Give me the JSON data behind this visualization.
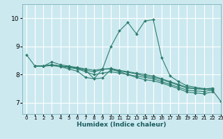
{
  "xlabel": "Humidex (Indice chaleur)",
  "ylabel": "",
  "xlim": [
    -0.5,
    23
  ],
  "ylim": [
    6.6,
    10.5
  ],
  "yticks": [
    7,
    8,
    9,
    10
  ],
  "xticks": [
    0,
    1,
    2,
    3,
    4,
    5,
    6,
    7,
    8,
    9,
    10,
    11,
    12,
    13,
    14,
    15,
    16,
    17,
    18,
    19,
    20,
    21,
    22,
    23
  ],
  "bg_color": "#cce9f0",
  "line_color": "#2e7d6e",
  "grid_color": "#ffffff",
  "lines": [
    {
      "x": [
        0,
        1,
        2,
        3,
        4,
        5,
        6,
        7,
        8,
        9,
        10,
        11,
        12,
        13,
        14,
        15,
        16,
        17,
        18,
        19,
        20,
        21,
        22,
        23
      ],
      "y": [
        8.7,
        8.3,
        8.3,
        8.45,
        8.35,
        8.3,
        8.25,
        8.15,
        7.85,
        8.2,
        9.0,
        9.55,
        9.85,
        9.45,
        9.9,
        9.95,
        8.6,
        7.95,
        7.75,
        7.6,
        7.55,
        7.5,
        7.45,
        7.05
      ]
    },
    {
      "x": [
        1,
        2,
        3,
        4,
        5,
        6,
        7,
        8,
        9,
        10,
        11,
        12,
        13,
        14,
        15,
        16,
        17,
        18,
        19,
        20,
        21,
        22
      ],
      "y": [
        8.3,
        8.3,
        8.35,
        8.3,
        8.28,
        8.25,
        8.2,
        8.15,
        8.2,
        8.2,
        8.12,
        8.08,
        8.02,
        7.95,
        7.9,
        7.82,
        7.72,
        7.62,
        7.52,
        7.5,
        7.48,
        7.5
      ]
    },
    {
      "x": [
        1,
        2,
        3,
        4,
        5,
        6,
        7,
        8,
        9,
        10,
        11,
        12,
        13,
        14,
        15,
        16,
        17,
        18,
        19,
        20,
        21,
        22
      ],
      "y": [
        8.3,
        8.3,
        8.35,
        8.3,
        8.28,
        8.22,
        8.15,
        8.1,
        8.18,
        8.22,
        8.15,
        8.1,
        8.05,
        8.0,
        7.95,
        7.85,
        7.75,
        7.65,
        7.55,
        7.5,
        7.48,
        7.52
      ]
    },
    {
      "x": [
        1,
        2,
        3,
        4,
        5,
        6,
        7,
        8,
        9,
        10,
        11,
        12,
        13,
        14,
        15,
        16,
        17,
        18,
        19,
        20,
        21,
        22
      ],
      "y": [
        8.3,
        8.3,
        8.35,
        8.3,
        8.25,
        8.2,
        8.1,
        8.0,
        8.05,
        8.1,
        8.05,
        8.0,
        7.95,
        7.9,
        7.85,
        7.75,
        7.65,
        7.55,
        7.45,
        7.42,
        7.4,
        7.45
      ]
    },
    {
      "x": [
        1,
        2,
        3,
        4,
        5,
        6,
        7,
        8,
        9,
        10,
        11,
        12,
        13,
        14,
        15,
        16,
        17,
        18,
        19,
        20,
        21,
        22
      ],
      "y": [
        8.3,
        8.3,
        8.32,
        8.28,
        8.2,
        8.12,
        7.9,
        7.85,
        7.88,
        8.18,
        8.1,
        8.0,
        7.9,
        7.82,
        7.78,
        7.7,
        7.6,
        7.5,
        7.38,
        7.35,
        7.32,
        7.38
      ]
    }
  ]
}
